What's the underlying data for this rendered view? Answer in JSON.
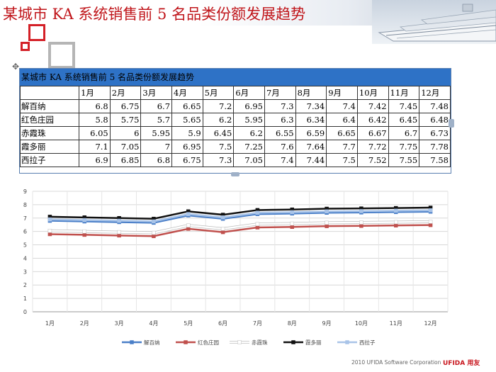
{
  "slide": {
    "title": "某城市 KA 系统销售前 5 名品类份额发展趋势",
    "footer": "2010 UFIDA Software Corporation",
    "logo": "UFIDA 用友"
  },
  "colors": {
    "title_red": "#c0161b",
    "header_blue": "#2e72c6"
  },
  "table": {
    "title": "某城市 KA 系统销售前 5 名品类份额发展趋势",
    "columns": [
      "",
      "1月",
      "2月",
      "3月",
      "4月",
      "5月",
      "6月",
      "7月",
      "8月",
      "9月",
      "10月",
      "11月",
      "12月"
    ],
    "rows": [
      {
        "name": "解百纳",
        "values": [
          "6.8",
          "6.75",
          "6.7",
          "6.65",
          "7.2",
          "6.95",
          "7.3",
          "7.34",
          "7.4",
          "7.42",
          "7.45",
          "7.48"
        ]
      },
      {
        "name": "红色庄园",
        "values": [
          "5.8",
          "5.75",
          "5.7",
          "5.65",
          "6.2",
          "5.95",
          "6.3",
          "6.34",
          "6.4",
          "6.42",
          "6.45",
          "6.48"
        ]
      },
      {
        "name": "赤霞珠",
        "values": [
          "6.05",
          "6",
          "5.95",
          "5.9",
          "6.45",
          "6.2",
          "6.55",
          "6.59",
          "6.65",
          "6.67",
          "6.7",
          "6.73"
        ]
      },
      {
        "name": "霞多丽",
        "values": [
          "7.1",
          "7.05",
          "7",
          "6.95",
          "7.5",
          "7.25",
          "7.6",
          "7.64",
          "7.7",
          "7.72",
          "7.75",
          "7.78"
        ]
      },
      {
        "name": "西拉子",
        "values": [
          "6.9",
          "6.85",
          "6.8",
          "6.75",
          "7.3",
          "7.05",
          "7.4",
          "7.44",
          "7.5",
          "7.52",
          "7.55",
          "7.58"
        ]
      }
    ]
  },
  "chart_data": {
    "type": "line",
    "title": "",
    "xlabel": "",
    "ylabel": "",
    "categories": [
      "1月",
      "2月",
      "3月",
      "4月",
      "5月",
      "6月",
      "7月",
      "8月",
      "9月",
      "10月",
      "11月",
      "12月"
    ],
    "y_ticks": [
      "0",
      "1",
      "2",
      "3",
      "4",
      "5",
      "6",
      "7",
      "8",
      "9"
    ],
    "ylim": [
      0,
      9
    ],
    "grid": true,
    "legend_position": "bottom",
    "series": [
      {
        "name": "解百纳",
        "color": "#4a7fc8",
        "values": [
          6.8,
          6.75,
          6.7,
          6.65,
          7.2,
          6.95,
          7.3,
          7.34,
          7.4,
          7.42,
          7.45,
          7.48
        ]
      },
      {
        "name": "红色庄园",
        "color": "#c0504d",
        "values": [
          5.8,
          5.75,
          5.7,
          5.65,
          6.2,
          5.95,
          6.3,
          6.34,
          6.4,
          6.42,
          6.45,
          6.48
        ]
      },
      {
        "name": "赤霞珠",
        "color": "#ffffff",
        "values": [
          6.05,
          6,
          5.95,
          5.9,
          6.45,
          6.2,
          6.55,
          6.59,
          6.65,
          6.67,
          6.7,
          6.73
        ]
      },
      {
        "name": "霞多丽",
        "color": "#111111",
        "values": [
          7.1,
          7.05,
          7,
          6.95,
          7.5,
          7.25,
          7.6,
          7.64,
          7.7,
          7.72,
          7.75,
          7.78
        ]
      },
      {
        "name": "西拉子",
        "color": "#a9c4e8",
        "values": [
          6.9,
          6.85,
          6.8,
          6.75,
          7.3,
          7.05,
          7.4,
          7.44,
          7.5,
          7.52,
          7.55,
          7.58
        ]
      }
    ]
  }
}
